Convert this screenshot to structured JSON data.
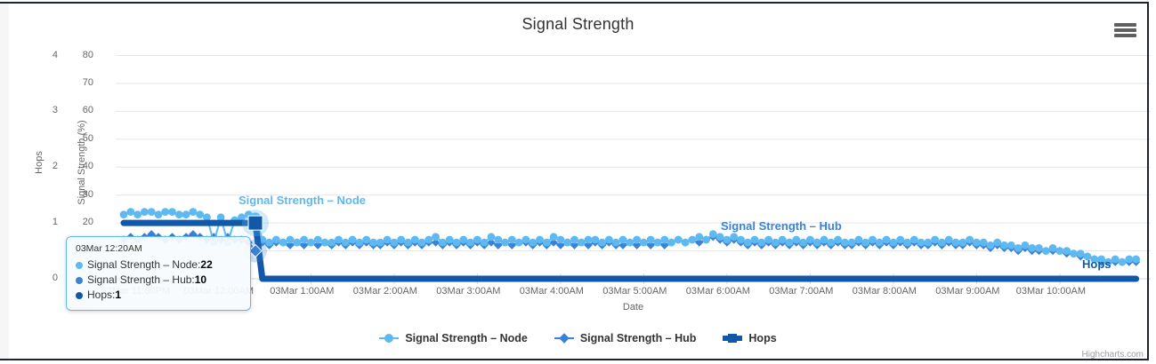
{
  "credits": "Highcharts.com",
  "menu": {
    "tooltip_name": "chart context menu"
  },
  "chart_data": {
    "type": "line",
    "title": "Signal Strength",
    "xlabel": "Date",
    "grid": true,
    "legend_position": "bottom-center",
    "y_axes": [
      {
        "title": "Hops",
        "ticks": [
          0,
          1,
          2,
          3,
          4
        ],
        "max": 4
      },
      {
        "title": "Signal Strength (%)",
        "ticks": [
          0,
          10,
          20,
          30,
          40,
          50,
          60,
          70,
          80
        ],
        "max": 80
      }
    ],
    "x_tick_labels": [
      "02Mar 11:00PM",
      "03Mar 12:00AM",
      "03Mar 1:00AM",
      "03Mar 2:00AM",
      "03Mar 3:00AM",
      "03Mar 4:00AM",
      "03Mar 5:00AM",
      "03Mar 6:00AM",
      "03Mar 7:00AM",
      "03Mar 8:00AM",
      "03Mar 9:00AM",
      "03Mar 10:00AM"
    ],
    "x_start": "02Mar 10:45PM",
    "x_end": "03Mar 10:55AM",
    "interval_minutes": 5,
    "series": [
      {
        "name": "Signal Strength – Node",
        "color": "#5EB9F1",
        "marker": "circle",
        "axis": "signal",
        "values": [
          23,
          24,
          23,
          24,
          24,
          23,
          24,
          24,
          23,
          23,
          24,
          23,
          22,
          13,
          22,
          13,
          21,
          22,
          23,
          22,
          14,
          13,
          14,
          13,
          14,
          13,
          14,
          13,
          14,
          13,
          13,
          14,
          13,
          14,
          13,
          14,
          13,
          13,
          14,
          13,
          14,
          13,
          14,
          13,
          14,
          15,
          13,
          14,
          13,
          14,
          13,
          14,
          13,
          15,
          14,
          13,
          14,
          13,
          14,
          13,
          14,
          13,
          15,
          14,
          13,
          14,
          13,
          14,
          14,
          13,
          14,
          13,
          14,
          13,
          14,
          13,
          14,
          13,
          14,
          13,
          14,
          13,
          14,
          15,
          14,
          16,
          15,
          14,
          15,
          14,
          13,
          14,
          13,
          14,
          13,
          14,
          13,
          14,
          13,
          14,
          13,
          14,
          13,
          14,
          13,
          13,
          14,
          13,
          14,
          13,
          14,
          13,
          14,
          13,
          14,
          13,
          13,
          14,
          13,
          14,
          13,
          13,
          14,
          13,
          13,
          12,
          13,
          12,
          12,
          11,
          12,
          11,
          11,
          10,
          11,
          10,
          10,
          9,
          9,
          8,
          7,
          7,
          6,
          7,
          6,
          7,
          7
        ]
      },
      {
        "name": "Signal Strength – Hub",
        "color": "#3A81D8",
        "marker": "diamond",
        "axis": "signal",
        "values": [
          14,
          15,
          14,
          15,
          16,
          15,
          14,
          15,
          14,
          15,
          16,
          15,
          14,
          15,
          14,
          15,
          14,
          14,
          13,
          10,
          13,
          12,
          13,
          13,
          12,
          13,
          12,
          13,
          12,
          13,
          12,
          13,
          12,
          13,
          12,
          13,
          12,
          12,
          13,
          12,
          13,
          12,
          13,
          12,
          13,
          13,
          12,
          13,
          12,
          13,
          12,
          13,
          12,
          13,
          12,
          13,
          12,
          13,
          13,
          12,
          13,
          12,
          13,
          12,
          13,
          12,
          13,
          12,
          13,
          12,
          13,
          12,
          12,
          13,
          12,
          13,
          12,
          13,
          12,
          13,
          14,
          13,
          14,
          13,
          14,
          15,
          14,
          13,
          14,
          13,
          12,
          13,
          12,
          13,
          12,
          13,
          12,
          13,
          12,
          13,
          12,
          13,
          12,
          13,
          12,
          12,
          13,
          12,
          13,
          12,
          13,
          12,
          13,
          12,
          13,
          12,
          12,
          13,
          12,
          13,
          12,
          12,
          13,
          12,
          12,
          11,
          12,
          11,
          11,
          10,
          11,
          10,
          10,
          10,
          10,
          10,
          9,
          9,
          8,
          8,
          7,
          6,
          6,
          6,
          6,
          6,
          6
        ]
      },
      {
        "name": "Hops",
        "color": "#1158A8",
        "marker": "square",
        "axis": "hops",
        "values": [
          1,
          1,
          1,
          1,
          1,
          1,
          1,
          1,
          1,
          1,
          1,
          1,
          1,
          1,
          1,
          1,
          1,
          1,
          1,
          1,
          0,
          0,
          0,
          0,
          0,
          0,
          0,
          0,
          0,
          0,
          0,
          0,
          0,
          0,
          0,
          0,
          0,
          0,
          0,
          0,
          0,
          0,
          0,
          0,
          0,
          0,
          0,
          0,
          0,
          0,
          0,
          0,
          0,
          0,
          0,
          0,
          0,
          0,
          0,
          0,
          0,
          0,
          0,
          0,
          0,
          0,
          0,
          0,
          0,
          0,
          0,
          0,
          0,
          0,
          0,
          0,
          0,
          0,
          0,
          0,
          0,
          0,
          0,
          0,
          0,
          0,
          0,
          0,
          0,
          0,
          0,
          0,
          0,
          0,
          0,
          0,
          0,
          0,
          0,
          0,
          0,
          0,
          0,
          0,
          0,
          0,
          0,
          0,
          0,
          0,
          0,
          0,
          0,
          0,
          0,
          0,
          0,
          0,
          0,
          0,
          0,
          0,
          0,
          0,
          0,
          0,
          0,
          0,
          0,
          0,
          0,
          0,
          0,
          0,
          0,
          0,
          0,
          0,
          0,
          0,
          0,
          0,
          0,
          0,
          0,
          0,
          0
        ]
      }
    ],
    "tooltip": {
      "header": "03Mar 12:20AM",
      "point_index": 19,
      "rows": [
        {
          "label": "Signal Strength – Node: ",
          "value": "22"
        },
        {
          "label": "Signal Strength – Hub: ",
          "value": "10"
        },
        {
          "label": "Hops: ",
          "value": "1"
        }
      ]
    }
  }
}
